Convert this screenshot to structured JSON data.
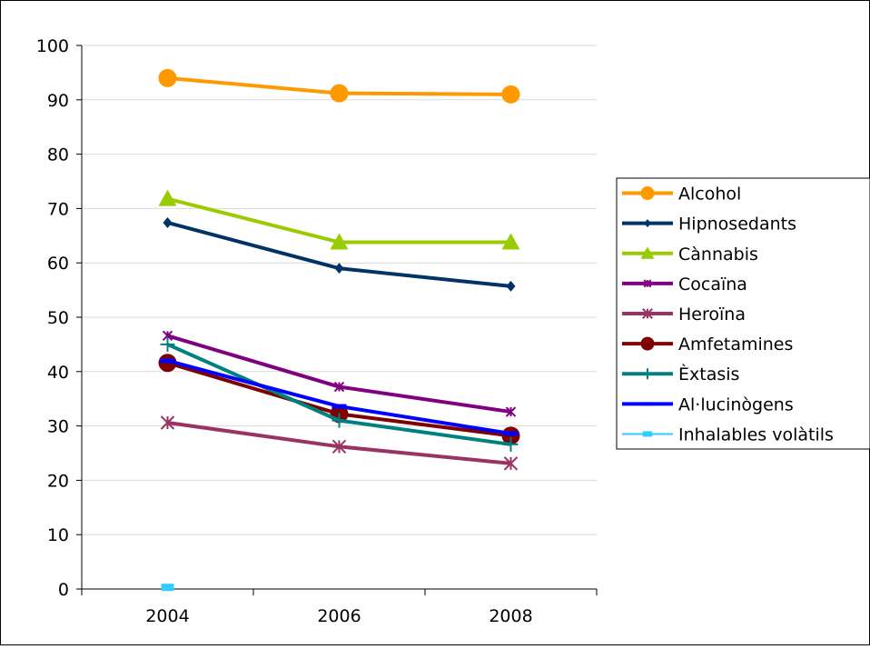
{
  "chart_data": {
    "type": "line",
    "title": "",
    "xlabel": "",
    "ylabel": "",
    "categories": [
      "2004",
      "2006",
      "2008"
    ],
    "ylim": [
      0,
      100
    ],
    "yticks": [
      "0",
      "10",
      "20",
      "30",
      "40",
      "50",
      "60",
      "70",
      "80",
      "90",
      "100"
    ],
    "grid": true,
    "legend_position": "right",
    "series": [
      {
        "name": "Alcohol",
        "values": [
          94.0,
          91.2,
          91.0
        ],
        "color": "#FF9900",
        "marker": "circle"
      },
      {
        "name": "Hipnosedants",
        "values": [
          67.4,
          59.0,
          55.7
        ],
        "color": "#003366",
        "marker": "diamond"
      },
      {
        "name": "Cànnabis",
        "values": [
          71.8,
          63.8,
          63.8
        ],
        "color": "#99CC00",
        "marker": "triangle"
      },
      {
        "name": "Cocaïna",
        "values": [
          46.6,
          37.2,
          32.6
        ],
        "color": "#800080",
        "marker": "star"
      },
      {
        "name": "Heroïna",
        "values": [
          30.6,
          26.2,
          23.1
        ],
        "color": "#993366",
        "marker": "asterisk"
      },
      {
        "name": "Amfetamines",
        "values": [
          41.6,
          32.2,
          28.2
        ],
        "color": "#800000",
        "marker": "circle"
      },
      {
        "name": "Èxtasis",
        "values": [
          45.0,
          31.0,
          26.6
        ],
        "color": "#008080",
        "marker": "plus"
      },
      {
        "name": "Al·lucinògens",
        "values": [
          42.0,
          33.6,
          28.6
        ],
        "color": "#0000FF",
        "marker": "dash"
      },
      {
        "name": "Inhalables volàtils",
        "values": [
          0.3,
          null,
          null
        ],
        "color": "#33CCFF",
        "marker": "square"
      }
    ]
  }
}
